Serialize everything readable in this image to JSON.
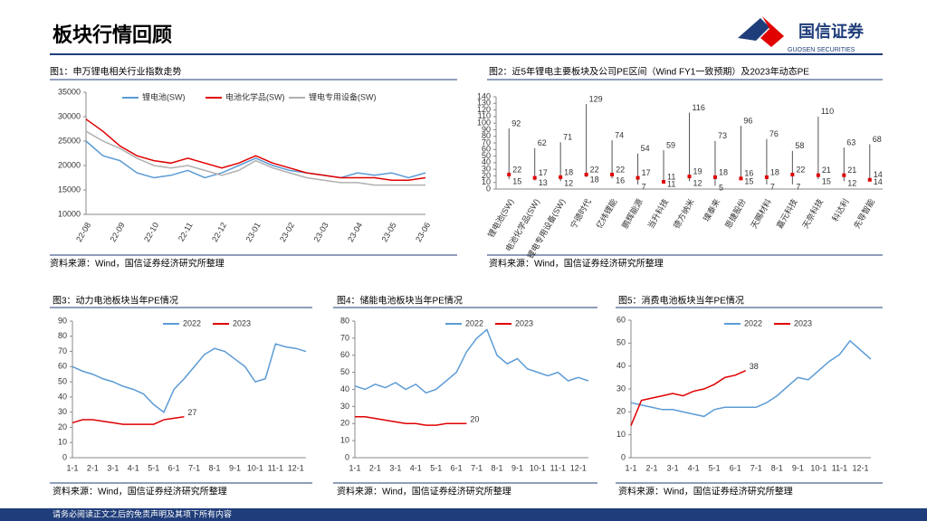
{
  "header": {
    "title": "板块行情回顾",
    "logo_cn": "国信证券",
    "logo_en": "GUOSEN SECURITIES"
  },
  "footer_note": "请务必阅读正文之后的免责声明及其项下所有内容",
  "chart_data": [
    {
      "type": "line",
      "title": "图1：申万锂电相关行业指数走势",
      "source": "资料来源：Wind，国信证券经济研究所整理",
      "categories": [
        "22-08",
        null,
        "22-09",
        null,
        "22-10",
        null,
        "22-11",
        null,
        "22-12",
        null,
        "23-01",
        null,
        "23-02",
        null,
        "23-03",
        null,
        "23-04",
        null,
        "23-05",
        null,
        "23-06"
      ],
      "series": [
        {
          "name": "锂电池(SW)",
          "color": "#5b9bd5",
          "values": [
            25000,
            22000,
            21000,
            18500,
            17500,
            18000,
            19000,
            17500,
            18500,
            20000,
            21500,
            20000,
            19000,
            18500,
            18000,
            17500,
            18500,
            18000,
            18500,
            17500,
            18500
          ]
        },
        {
          "name": "电池化学品(SW)",
          "color": "#e00000",
          "values": [
            29500,
            27000,
            24000,
            22000,
            21000,
            20500,
            21500,
            20500,
            19500,
            20500,
            22000,
            20500,
            19500,
            18500,
            18000,
            17500,
            17500,
            17500,
            17000,
            17000,
            17500
          ]
        },
        {
          "name": "锂电专用设备(SW)",
          "color": "#b0b0b0",
          "values": [
            27000,
            25000,
            23500,
            21500,
            20000,
            19500,
            20000,
            19000,
            18000,
            19000,
            21000,
            19500,
            18500,
            17500,
            17000,
            16500,
            16500,
            16000,
            16000,
            16000,
            16000
          ]
        }
      ],
      "ylim": [
        10000,
        35000
      ],
      "yticks": [
        10000,
        15000,
        20000,
        25000,
        30000,
        35000
      ]
    },
    {
      "type": "range",
      "title": "图2：近5年锂电主要板块及公司PE区间（Wind FY1一致预期）及2023年动态PE",
      "source": "资料来源：Wind，国信证券经济研究所整理",
      "categories": [
        "锂电池(SW)",
        "电池化学品(SW)",
        "锂电专用设备(SW)",
        "宁德时代",
        "亿纬锂能",
        "鹏辉能源",
        "当升科技",
        "德方纳米",
        "璞泰来",
        "恩捷股份",
        "天赐材料",
        "嘉元科技",
        "天奈科技",
        "科达利",
        "先导智能"
      ],
      "high": [
        92,
        62,
        71,
        129,
        74,
        54,
        59,
        116,
        73,
        96,
        76,
        58,
        110,
        63,
        68
      ],
      "low": [
        15,
        13,
        12,
        18,
        16,
        7,
        11,
        12,
        5,
        15,
        7,
        7,
        15,
        12,
        14
      ],
      "values": [
        22,
        17,
        18,
        22,
        22,
        17,
        11,
        19,
        18,
        16,
        18,
        22,
        21,
        21,
        14
      ],
      "color": "#e00000",
      "range_color": "#555555",
      "ylim": [
        0,
        140
      ],
      "yticks": [
        0,
        10,
        20,
        30,
        40,
        50,
        60,
        70,
        80,
        90,
        100,
        110,
        120,
        130,
        140
      ]
    },
    {
      "type": "line",
      "title": "图3：动力电池板块当年PE情况",
      "source": "资料来源：Wind，国信证券经济研究所整理",
      "categories": [
        "1-1",
        null,
        "2-1",
        null,
        "3-1",
        null,
        "4-1",
        null,
        "5-1",
        null,
        "6-1",
        null,
        "7-1",
        null,
        "8-1",
        null,
        "9-1",
        null,
        "10-1",
        null,
        "11-1",
        null,
        "12-1",
        null
      ],
      "series": [
        {
          "name": "2022",
          "color": "#5b9bd5",
          "values": [
            60,
            57,
            55,
            52,
            50,
            47,
            45,
            42,
            35,
            30,
            45,
            52,
            60,
            68,
            72,
            70,
            65,
            60,
            50,
            52,
            75,
            73,
            72,
            70
          ]
        },
        {
          "name": "2023",
          "color": "#e00000",
          "values": [
            23,
            25,
            25,
            24,
            23,
            22,
            22,
            22,
            22,
            25,
            26,
            27,
            null,
            null,
            null,
            null,
            null,
            null,
            null,
            null,
            null,
            null,
            null,
            null
          ]
        }
      ],
      "ylim": [
        0,
        90
      ],
      "yticks": [
        0,
        10,
        20,
        30,
        40,
        50,
        60,
        70,
        80,
        90
      ]
    },
    {
      "type": "line",
      "title": "图4：储能电池板块当年PE情况",
      "source": "资料来源：Wind，国信证券经济研究所整理",
      "categories": [
        "1-1",
        null,
        "2-1",
        null,
        "3-1",
        null,
        "4-1",
        null,
        "5-1",
        null,
        "6-1",
        null,
        "7-1",
        null,
        "8-1",
        null,
        "9-1",
        null,
        "10-1",
        null,
        "11-1",
        null,
        "12-1",
        null
      ],
      "series": [
        {
          "name": "2022",
          "color": "#5b9bd5",
          "values": [
            42,
            40,
            43,
            41,
            44,
            40,
            43,
            38,
            40,
            45,
            50,
            62,
            70,
            75,
            60,
            55,
            58,
            52,
            50,
            48,
            50,
            45,
            47,
            45
          ]
        },
        {
          "name": "2023",
          "color": "#e00000",
          "values": [
            24,
            24,
            23,
            22,
            21,
            20,
            20,
            19,
            19,
            20,
            20,
            20,
            null,
            null,
            null,
            null,
            null,
            null,
            null,
            null,
            null,
            null,
            null,
            null
          ]
        }
      ],
      "ylim": [
        0,
        80
      ],
      "yticks": [
        0,
        10,
        20,
        30,
        40,
        50,
        60,
        70,
        80
      ]
    },
    {
      "type": "line",
      "title": "图5：消费电池板块当年PE情况",
      "source": "资料来源：Wind，国信证券经济研究所整理",
      "categories": [
        "1-1",
        null,
        "2-1",
        null,
        "3-1",
        null,
        "4-1",
        null,
        "5-1",
        null,
        "6-1",
        null,
        "7-1",
        null,
        "8-1",
        null,
        "9-1",
        null,
        "10-1",
        null,
        "11-1",
        null,
        "12-1",
        null
      ],
      "series": [
        {
          "name": "2022",
          "color": "#5b9bd5",
          "values": [
            24,
            23,
            22,
            21,
            21,
            20,
            19,
            18,
            21,
            22,
            22,
            22,
            22,
            24,
            27,
            31,
            35,
            34,
            38,
            42,
            45,
            51,
            47,
            43
          ]
        },
        {
          "name": "2023",
          "color": "#e00000",
          "values": [
            14,
            25,
            26,
            27,
            28,
            27,
            29,
            30,
            32,
            35,
            36,
            38,
            null,
            null,
            null,
            null,
            null,
            null,
            null,
            null,
            null,
            null,
            null,
            null
          ]
        }
      ],
      "ylim": [
        0,
        60
      ],
      "yticks": [
        0,
        10,
        20,
        30,
        40,
        50,
        60
      ]
    }
  ]
}
